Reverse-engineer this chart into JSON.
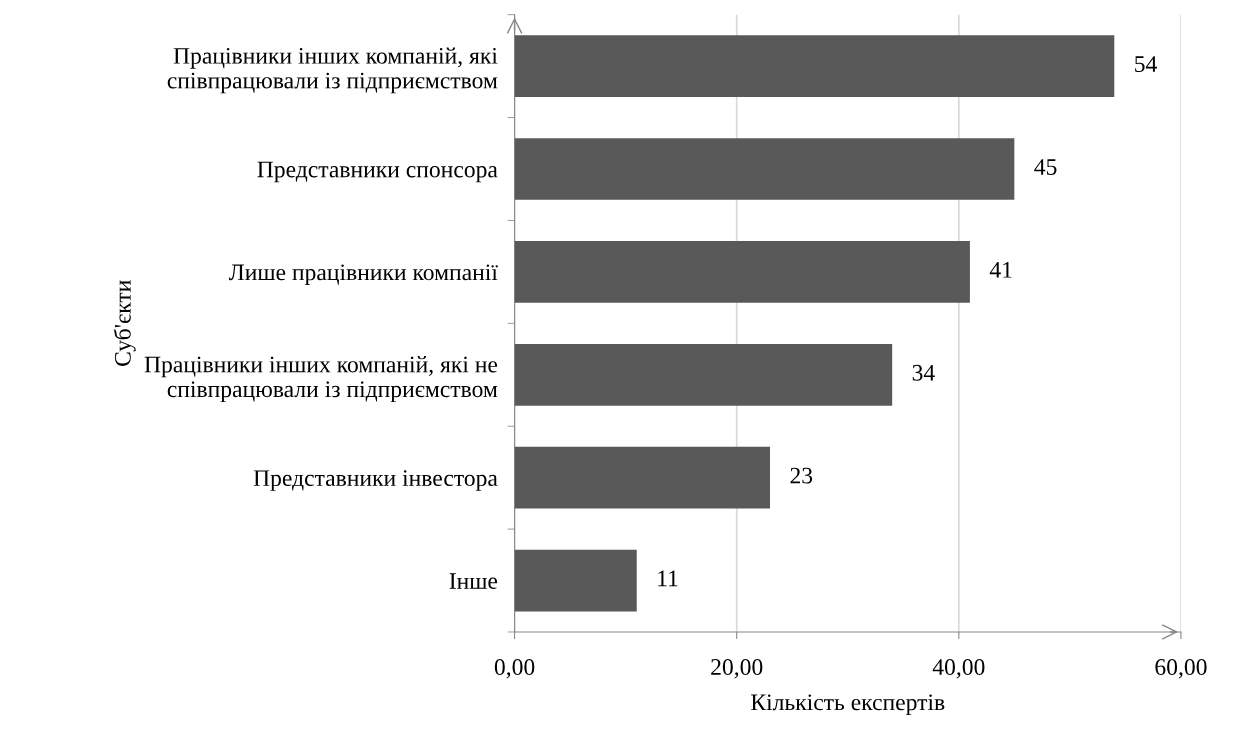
{
  "chart_data": {
    "type": "bar",
    "orientation": "horizontal",
    "categories": [
      "Працівники інших компаній, які\nспівпрацювали із підприємством",
      "Представники спонсора",
      "Лише працівники компанії",
      "Працівники інших компаній, які не\nспівпрацювали із підприємством",
      "Представники інвестора",
      "Інше"
    ],
    "values": [
      54,
      45,
      41,
      34,
      23,
      11
    ],
    "color": "#595959",
    "xlabel": "Кількість експертів",
    "ylabel": "Суб'єкти",
    "xlim": [
      0,
      60
    ],
    "xticks": [
      {
        "value": 0,
        "label": "0,00"
      },
      {
        "value": 20,
        "label": "20,00"
      },
      {
        "value": 40,
        "label": "40,00"
      },
      {
        "value": 60,
        "label": "60,00"
      }
    ],
    "grid": "x",
    "data_labels": true
  }
}
